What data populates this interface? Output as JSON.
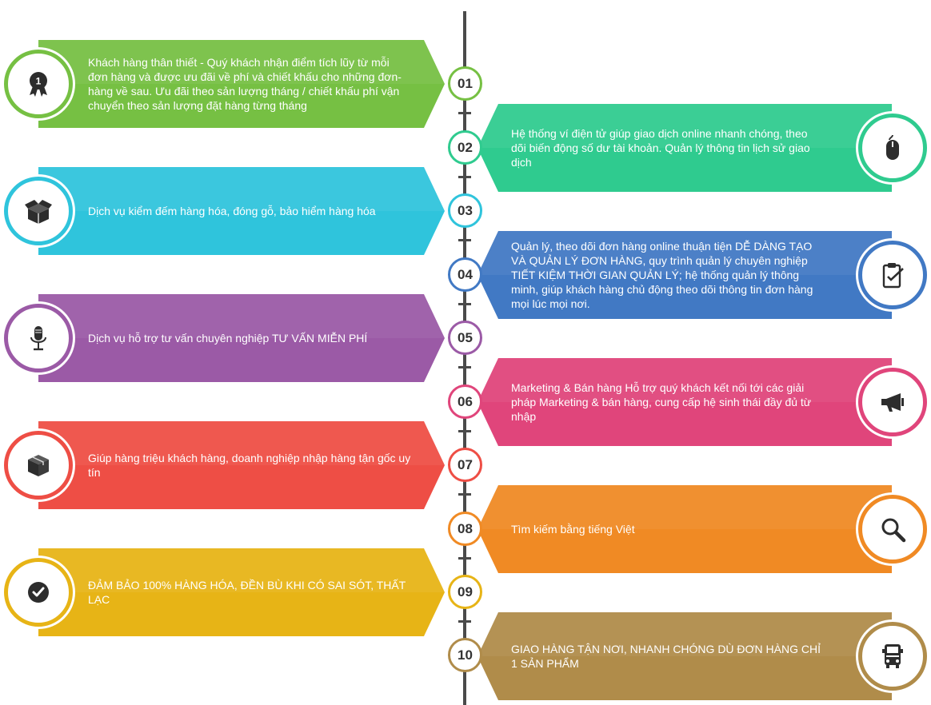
{
  "items": [
    {
      "num": "01",
      "text": "Khách hàng thân thiết - Quý khách nhận điểm tích lũy từ mỗi đơn hàng và được ưu đãi về phí và chiết khấu cho những đơn-hàng về sau. Ưu đãi theo sản lượng tháng / chiết khấu phí vận chuyển theo sản lượng đặt hàng từng tháng",
      "icon": "award-medal-icon",
      "badge": "1",
      "color": "#76c043"
    },
    {
      "num": "02",
      "text": "Hệ thống ví điện tử giúp giao dịch online nhanh chóng, theo dõi biến động số dư tài khoản. Quản lý thông tin lịch sử giao dịch",
      "icon": "mouse-icon",
      "color": "#2fcb8f"
    },
    {
      "num": "03",
      "text": "Dịch vụ kiểm đếm hàng hóa, đóng gỗ, bảo hiểm hàng hóa",
      "icon": "open-box-icon",
      "color": "#2fc4dc"
    },
    {
      "num": "04",
      "text": "Quản lý, theo dõi đơn hàng online thuận tiện DỄ DÀNG TẠO VÀ QUẢN LÝ ĐƠN HÀNG, quy trình quản lý chuyên nghiệp TIẾT KIỆM THỜI GIAN QUẢN LÝ; hệ thống quản lý thông minh, giúp khách hàng chủ động theo dõi thông tin đơn hàng mọi lúc mọi nơi.",
      "icon": "clipboard-check-icon",
      "color": "#4179c4"
    },
    {
      "num": "05",
      "text": "Dịch vụ hỗ trợ tư vấn chuyên nghiệp TƯ VẤN MIỄN PHÍ",
      "icon": "microphone-icon",
      "color": "#9b5aa6"
    },
    {
      "num": "06",
      "text": "Marketing & Bán hàng Hỗ trợ quý khách kết nối tới các giải pháp Marketing &  bán hàng, cung cấp hệ sinh thái đầy đủ từ nhập",
      "icon": "megaphone-icon",
      "color": "#e0457b"
    },
    {
      "num": "07",
      "text": "Giúp hàng triệu khách hàng, doanh nghiệp nhập hàng tận gốc uy tín",
      "icon": "package-icon",
      "color": "#ee4e45"
    },
    {
      "num": "08",
      "text": "Tìm kiếm bằng tiếng Việt",
      "icon": "search-icon",
      "color": "#f08a24"
    },
    {
      "num": "09",
      "text": "ĐẢM BẢO 100% HÀNG HÓA, ĐỀN BÙ KHI CÓ SAI SÓT, THẤT LẠC",
      "icon": "check-circle-icon",
      "color": "#e7b416"
    },
    {
      "num": "10",
      "text": "GIAO HÀNG TẬN NƠI, NHANH CHÓNG DÙ ĐƠN HÀNG CHỈ 1 SẢN PHẨM",
      "icon": "truck-icon",
      "color": "#b08c4a"
    }
  ]
}
